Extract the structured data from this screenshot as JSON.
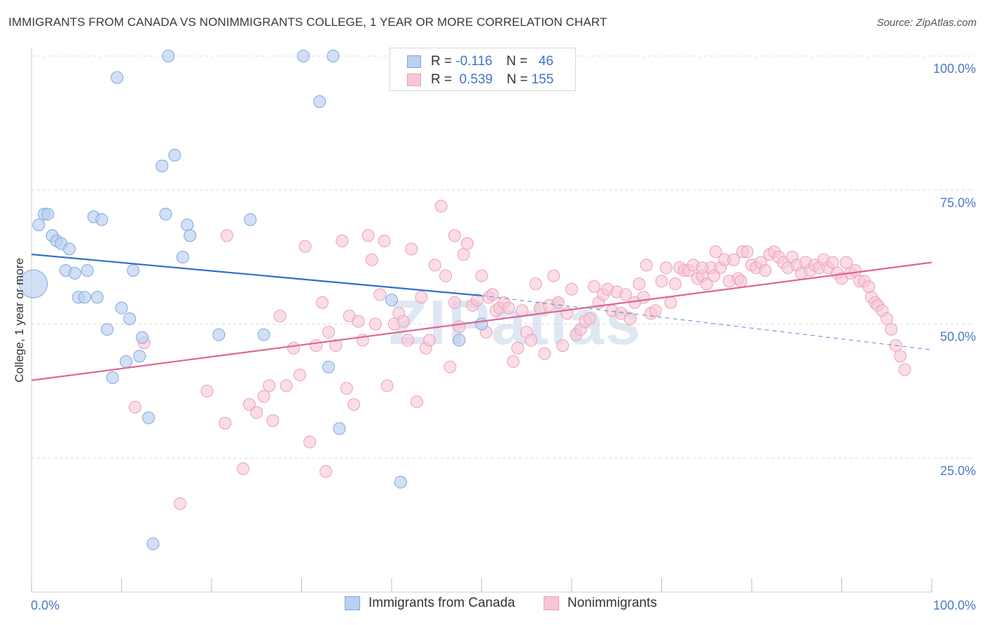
{
  "header": {
    "title": "IMMIGRANTS FROM CANADA VS NONIMMIGRANTS COLLEGE, 1 YEAR OR MORE CORRELATION CHART",
    "source": "Source: ZipAtlas.com"
  },
  "watermark": "ZIPatlas",
  "legend_top": {
    "rows": [
      {
        "r_label": "R =",
        "r_value": "-0.116",
        "n_label": "N =",
        "n_value": "46"
      },
      {
        "r_label": "R =",
        "r_value": "0.539",
        "n_label": "N =",
        "n_value": "155"
      }
    ]
  },
  "legend_bottom": {
    "items": [
      "Immigrants from Canada",
      "Nonimmigrants"
    ]
  },
  "colors": {
    "blue_fill": "#b9d0f0",
    "blue_stroke": "#7fa6dd",
    "blue_line": "#2f6fcc",
    "pink_fill": "#f7c6d5",
    "pink_stroke": "#ec9fb8",
    "pink_line": "#e0648e",
    "tick_text": "#4a78c8",
    "grid": "#dcdcdc"
  },
  "chart_data": {
    "type": "scatter",
    "title": "IMMIGRANTS FROM CANADA VS NONIMMIGRANTS COLLEGE, 1 YEAR OR MORE CORRELATION CHART",
    "xlabel": "",
    "ylabel": "College, 1 year or more",
    "xlim": [
      0,
      100
    ],
    "ylim": [
      0,
      100
    ],
    "x_tick_labels": [
      "0.0%",
      "100.0%"
    ],
    "y_ticks": [
      25,
      50,
      75,
      100
    ],
    "y_tick_labels": [
      "25.0%",
      "50.0%",
      "75.0%",
      "100.0%"
    ],
    "grid": "horizontal dashed",
    "legend_position": "bottom",
    "series": [
      {
        "name": "Immigrants from Canada",
        "color": "#b9d0f0",
        "r": -0.116,
        "n": 46,
        "trend": {
          "x": [
            0,
            50
          ],
          "y": [
            63.0,
            55.3
          ]
        },
        "trend_dashed": {
          "x": [
            50,
            100
          ],
          "y": [
            55.3,
            45.2
          ]
        },
        "points": [
          [
            0.2,
            57.5
          ],
          [
            0.8,
            68.5
          ],
          [
            1.4,
            70.5
          ],
          [
            1.8,
            70.5
          ],
          [
            2.3,
            66.5
          ],
          [
            2.8,
            65.5
          ],
          [
            3.3,
            65.0
          ],
          [
            4.2,
            64.0
          ],
          [
            3.8,
            60.0
          ],
          [
            4.8,
            59.5
          ],
          [
            6.2,
            60.0
          ],
          [
            5.2,
            55.0
          ],
          [
            5.9,
            55.0
          ],
          [
            7.3,
            55.0
          ],
          [
            6.9,
            70.0
          ],
          [
            7.8,
            69.5
          ],
          [
            8.4,
            49.0
          ],
          [
            9.0,
            40.0
          ],
          [
            9.5,
            96.0
          ],
          [
            10.0,
            53.0
          ],
          [
            10.5,
            43.0
          ],
          [
            10.9,
            51.0
          ],
          [
            11.3,
            60.0
          ],
          [
            12.0,
            44.0
          ],
          [
            12.3,
            47.5
          ],
          [
            13.0,
            32.5
          ],
          [
            13.5,
            9.0
          ],
          [
            14.5,
            79.5
          ],
          [
            14.9,
            70.5
          ],
          [
            15.2,
            100.0
          ],
          [
            15.9,
            81.5
          ],
          [
            16.8,
            62.5
          ],
          [
            17.3,
            68.5
          ],
          [
            17.6,
            66.5
          ],
          [
            20.8,
            48.0
          ],
          [
            24.3,
            69.5
          ],
          [
            25.8,
            48.0
          ],
          [
            30.2,
            100.0
          ],
          [
            32.0,
            91.5
          ],
          [
            33.0,
            42.0
          ],
          [
            33.5,
            100.0
          ],
          [
            34.2,
            30.5
          ],
          [
            40.0,
            54.5
          ],
          [
            41.0,
            20.5
          ],
          [
            47.5,
            47.0
          ],
          [
            50.0,
            50.0
          ]
        ]
      },
      {
        "name": "Nonimmigrants",
        "color": "#f7c6d5",
        "r": 0.539,
        "n": 155,
        "trend": {
          "x": [
            0,
            100
          ],
          "y": [
            39.5,
            61.5
          ]
        },
        "points": [
          [
            11.5,
            34.5
          ],
          [
            12.5,
            46.5
          ],
          [
            16.5,
            16.5
          ],
          [
            19.5,
            37.5
          ],
          [
            21.5,
            31.5
          ],
          [
            21.7,
            66.5
          ],
          [
            23.5,
            23.0
          ],
          [
            24.2,
            35.0
          ],
          [
            25.0,
            33.5
          ],
          [
            25.8,
            36.5
          ],
          [
            26.4,
            38.5
          ],
          [
            26.8,
            32.0
          ],
          [
            27.6,
            51.5
          ],
          [
            28.3,
            38.5
          ],
          [
            29.1,
            45.5
          ],
          [
            29.8,
            40.5
          ],
          [
            30.4,
            64.5
          ],
          [
            30.9,
            28.0
          ],
          [
            31.6,
            46.0
          ],
          [
            32.3,
            54.0
          ],
          [
            32.7,
            22.5
          ],
          [
            33.0,
            48.5
          ],
          [
            33.8,
            46.0
          ],
          [
            34.5,
            65.5
          ],
          [
            35.0,
            38.0
          ],
          [
            35.3,
            51.5
          ],
          [
            35.8,
            35.0
          ],
          [
            36.3,
            50.5
          ],
          [
            36.8,
            47.0
          ],
          [
            37.4,
            66.5
          ],
          [
            37.8,
            62.0
          ],
          [
            38.2,
            50.0
          ],
          [
            38.7,
            55.5
          ],
          [
            39.2,
            65.5
          ],
          [
            39.5,
            38.5
          ],
          [
            40.3,
            50.0
          ],
          [
            40.8,
            52.0
          ],
          [
            41.3,
            50.5
          ],
          [
            41.8,
            47.0
          ],
          [
            42.2,
            64.0
          ],
          [
            42.8,
            35.5
          ],
          [
            43.3,
            55.0
          ],
          [
            43.8,
            45.5
          ],
          [
            44.2,
            47.0
          ],
          [
            44.8,
            61.0
          ],
          [
            45.5,
            72.0
          ],
          [
            46.0,
            59.0
          ],
          [
            46.5,
            42.0
          ],
          [
            47.0,
            54.0
          ],
          [
            47.5,
            49.5
          ],
          [
            48.0,
            63.0
          ],
          [
            48.4,
            65.0
          ],
          [
            49.0,
            53.5
          ],
          [
            49.5,
            54.5
          ],
          [
            50.0,
            59.0
          ],
          [
            50.5,
            48.5
          ],
          [
            50.8,
            55.0
          ],
          [
            51.2,
            55.5
          ],
          [
            51.6,
            52.5
          ],
          [
            52.0,
            53.0
          ],
          [
            52.5,
            54.0
          ],
          [
            53.0,
            53.0
          ],
          [
            53.5,
            43.0
          ],
          [
            54.0,
            45.5
          ],
          [
            54.5,
            52.5
          ],
          [
            55.0,
            48.5
          ],
          [
            55.5,
            47.0
          ],
          [
            56.0,
            57.5
          ],
          [
            56.5,
            53.0
          ],
          [
            57.0,
            44.5
          ],
          [
            57.5,
            53.5
          ],
          [
            58.0,
            59.0
          ],
          [
            58.5,
            54.0
          ],
          [
            59.0,
            46.0
          ],
          [
            59.5,
            52.0
          ],
          [
            60.0,
            56.5
          ],
          [
            60.5,
            48.0
          ],
          [
            61.0,
            49.0
          ],
          [
            61.5,
            50.5
          ],
          [
            62.0,
            51.0
          ],
          [
            62.5,
            57.0
          ],
          [
            63.0,
            54.0
          ],
          [
            63.5,
            55.5
          ],
          [
            64.0,
            56.5
          ],
          [
            64.5,
            52.5
          ],
          [
            65.0,
            56.0
          ],
          [
            65.5,
            52.0
          ],
          [
            66.0,
            55.5
          ],
          [
            66.5,
            51.0
          ],
          [
            67.0,
            54.0
          ],
          [
            67.5,
            57.5
          ],
          [
            68.0,
            55.0
          ],
          [
            68.3,
            61.0
          ],
          [
            68.8,
            52.0
          ],
          [
            69.3,
            52.5
          ],
          [
            70.0,
            58.0
          ],
          [
            70.5,
            60.5
          ],
          [
            71.0,
            54.0
          ],
          [
            71.5,
            57.5
          ],
          [
            72.0,
            60.5
          ],
          [
            72.5,
            60.0
          ],
          [
            73.0,
            60.0
          ],
          [
            73.5,
            61.0
          ],
          [
            74.0,
            58.5
          ],
          [
            74.5,
            59.0
          ],
          [
            75.0,
            57.5
          ],
          [
            75.5,
            60.5
          ],
          [
            76.0,
            63.5
          ],
          [
            76.5,
            60.5
          ],
          [
            77.0,
            62.0
          ],
          [
            77.5,
            58.0
          ],
          [
            78.0,
            62.0
          ],
          [
            78.5,
            58.5
          ],
          [
            79.0,
            63.5
          ],
          [
            79.5,
            63.5
          ],
          [
            80.0,
            61.0
          ],
          [
            80.5,
            60.5
          ],
          [
            81.0,
            61.5
          ],
          [
            81.5,
            60.0
          ],
          [
            82.0,
            63.0
          ],
          [
            82.5,
            63.5
          ],
          [
            83.0,
            62.5
          ],
          [
            83.5,
            61.5
          ],
          [
            84.0,
            60.5
          ],
          [
            84.5,
            62.5
          ],
          [
            85.0,
            61.0
          ],
          [
            85.5,
            59.5
          ],
          [
            86.0,
            61.5
          ],
          [
            86.5,
            60.0
          ],
          [
            87.0,
            61.0
          ],
          [
            87.5,
            60.5
          ],
          [
            88.0,
            62.0
          ],
          [
            88.5,
            60.5
          ],
          [
            89.0,
            61.5
          ],
          [
            89.5,
            59.5
          ],
          [
            90.0,
            58.5
          ],
          [
            90.5,
            61.5
          ],
          [
            91.0,
            59.5
          ],
          [
            91.5,
            60.0
          ],
          [
            92.0,
            58.0
          ],
          [
            92.5,
            58.0
          ],
          [
            93.0,
            57.0
          ],
          [
            93.3,
            55.0
          ],
          [
            93.7,
            54.0
          ],
          [
            94.0,
            53.5
          ],
          [
            94.5,
            52.5
          ],
          [
            95.0,
            51.0
          ],
          [
            95.5,
            49.0
          ],
          [
            96.0,
            46.0
          ],
          [
            96.5,
            44.0
          ],
          [
            97.0,
            41.5
          ],
          [
            47.0,
            66.5
          ],
          [
            74.5,
            60.5
          ],
          [
            75.8,
            59.0
          ],
          [
            78.8,
            58.0
          ]
        ]
      }
    ]
  }
}
